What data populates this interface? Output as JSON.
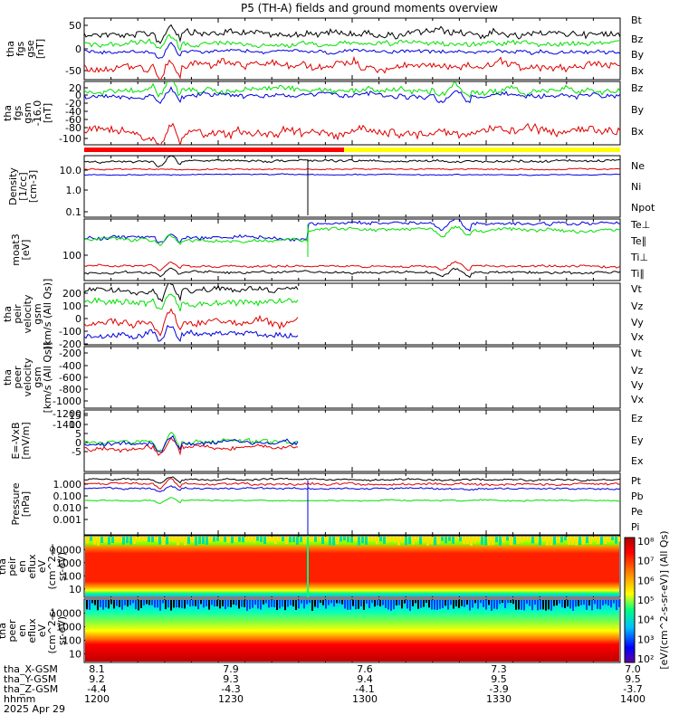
{
  "title": "P5 (TH-A) fields and ground moments overview",
  "colors": {
    "black": "#000000",
    "red": "#e00000",
    "green": "#00e000",
    "blue": "#0000e0",
    "yellow": "#ffff00",
    "bar_red": "#ff0000"
  },
  "panels": [
    {
      "ylabel": [
        "tha",
        "fgs",
        "gse",
        "[nT]"
      ],
      "yticks": [
        "50",
        "0",
        "-50"
      ],
      "legend": [
        {
          "text": "Bt",
          "color": "black"
        },
        {
          "text": "Bz",
          "color": "red"
        },
        {
          "text": "By",
          "color": "green"
        },
        {
          "text": "Bx",
          "color": "blue"
        }
      ]
    },
    {
      "ylabel": [
        "tha",
        "fgs",
        "gsm",
        "-16.0",
        "[nT]"
      ],
      "yticks": [
        "20",
        "0",
        "-20",
        "-40",
        "-60",
        "-80",
        "-100"
      ],
      "legend": [
        {
          "text": "Bz",
          "color": "red"
        },
        {
          "text": "By",
          "color": "green"
        },
        {
          "text": "Bx",
          "color": "blue"
        }
      ]
    },
    {
      "ylabel": [
        "Density",
        "[1/cc]",
        "[cm-3]"
      ],
      "yticks": [
        "10.0",
        "1.0",
        "0.1"
      ],
      "legend": [
        {
          "text": "Ne",
          "color": "red"
        },
        {
          "text": "Ni",
          "color": "black"
        },
        {
          "text": "Npot",
          "color": "blue"
        }
      ]
    },
    {
      "ylabel": [
        "moat3",
        "[eV]"
      ],
      "yticks": [
        "100"
      ],
      "legend": [
        {
          "text": "Te⊥",
          "color": "red"
        },
        {
          "text": "Te∥",
          "color": "black"
        },
        {
          "text": "Ti⊥",
          "color": "green"
        },
        {
          "text": "Ti∥",
          "color": "green"
        }
      ]
    },
    {
      "ylabel": [
        "tha",
        "peir",
        "velocity",
        "gsm",
        "[km/s (All Qs)]"
      ],
      "yticks": [
        "200",
        "100",
        "0",
        "-100",
        "-200"
      ],
      "legend": [
        {
          "text": "Vt",
          "color": "black"
        },
        {
          "text": "Vz",
          "color": "red"
        },
        {
          "text": "Vy",
          "color": "green"
        },
        {
          "text": "Vx",
          "color": "blue"
        }
      ]
    },
    {
      "ylabel": [
        "tha",
        "peer",
        "velocity",
        "gsm",
        "[km/s (All Qs)]"
      ],
      "yticks": [
        "-200",
        "-400",
        "-600",
        "-800",
        "-1000",
        "-1200",
        "-1400"
      ],
      "legend": [
        {
          "text": "Vt",
          "color": "black"
        },
        {
          "text": "Vz",
          "color": "red"
        },
        {
          "text": "Vy",
          "color": "green"
        },
        {
          "text": "Vx",
          "color": "blue"
        }
      ]
    },
    {
      "ylabel": [
        "E=-VxB",
        "[mV/m]"
      ],
      "yticks": [
        "15",
        "10",
        "5",
        "0",
        "-5"
      ],
      "legend": [
        {
          "text": "Ez",
          "color": "red"
        },
        {
          "text": "Ey",
          "color": "green"
        },
        {
          "text": "Ex",
          "color": "blue"
        }
      ]
    },
    {
      "ylabel": [
        "Pressure",
        "[nPa]"
      ],
      "yticks": [
        "1.000",
        "0.100",
        "0.010",
        "0.001"
      ],
      "legend": [
        {
          "text": "Pt",
          "color": "black"
        },
        {
          "text": "Pb",
          "color": "red"
        },
        {
          "text": "Pe",
          "color": "green"
        },
        {
          "text": "Pi",
          "color": "blue"
        }
      ]
    },
    {
      "ylabel": [
        "tha",
        "peir",
        "en",
        "eflux",
        "eV",
        "(cm^2-s-",
        "sr-eV)"
      ],
      "yticks": [
        "10000",
        "1000",
        "100",
        "10"
      ]
    },
    {
      "ylabel": [
        "tha",
        "peer",
        "en",
        "eflux",
        "eV",
        "(cm^2-s-",
        "sr-eV)"
      ],
      "yticks": [
        "10000",
        "1000",
        "100",
        "10"
      ]
    }
  ],
  "colorbar": {
    "ticks": [
      "10⁸",
      "10⁷",
      "10⁶",
      "10⁵",
      "10⁴",
      "10³",
      "10²"
    ],
    "label": "[eV/(cm^2-s-sr-eV)] (All Qs)"
  },
  "xaxis": {
    "row_labels": [
      "tha_X-GSM",
      "tha_Y-GSM",
      "tha_Z-GSM",
      "hhmm",
      "2025 Apr 29"
    ],
    "columns": [
      {
        "values": [
          "8.1",
          "9.2",
          "-4.4",
          "1200"
        ]
      },
      {
        "values": [
          "7.9",
          "9.3",
          "-4.3",
          "1230"
        ]
      },
      {
        "values": [
          "7.6",
          "9.4",
          "-4.1",
          "1300"
        ]
      },
      {
        "values": [
          "7.3",
          "9.5",
          "-3.9",
          "1330"
        ]
      },
      {
        "values": [
          "7.0",
          "9.5",
          "-3.7",
          "1400"
        ]
      }
    ]
  },
  "chart_data": [
    {
      "type": "line",
      "title": "tha fgs gse",
      "series": [
        "Bt",
        "Bz",
        "By",
        "Bx"
      ],
      "ylim": [
        -75,
        75
      ],
      "typical": {
        "Bt": 55,
        "Bz": -45,
        "By": 10,
        "Bx": -5
      }
    },
    {
      "type": "line",
      "title": "tha fgs gsm",
      "series": [
        "Bz",
        "By",
        "Bx"
      ],
      "ylim": [
        -110,
        30
      ],
      "typical": {
        "Bz": -95,
        "By": 15,
        "Bx": 0
      }
    },
    {
      "type": "line",
      "title": "Density",
      "series": [
        "Ne",
        "Ni",
        "Npot"
      ],
      "log": true,
      "ylim": [
        0.04,
        30
      ],
      "typical": {
        "Ne": 10,
        "Ni": 20,
        "Npot": 6
      }
    },
    {
      "type": "line",
      "title": "moat3",
      "series": [
        "Te⊥",
        "Te∥",
        "Ti⊥",
        "Ti∥"
      ],
      "log": true,
      "typical": {
        "Te⊥": 60,
        "Te∥": 45,
        "Ti⊥": 500,
        "Ti∥": 350
      }
    },
    {
      "type": "line",
      "title": "peir velocity",
      "series": [
        "Vt",
        "Vz",
        "Vy",
        "Vx"
      ],
      "ylim": [
        -250,
        280
      ],
      "x_end": "1248",
      "typical": {
        "Vt": 180,
        "Vz": -60,
        "Vy": 120,
        "Vx": -150
      }
    },
    {
      "type": "line",
      "title": "peer velocity",
      "series": [
        "Vt",
        "Vz",
        "Vy",
        "Vx"
      ],
      "ylim": [
        -1500,
        -100
      ]
    },
    {
      "type": "line",
      "title": "E=-VxB",
      "series": [
        "Ez",
        "Ey",
        "Ex"
      ],
      "ylim": [
        -6,
        16
      ],
      "x_end": "1248",
      "typical": {
        "Ez": 3,
        "Ey": 6,
        "Ex": 4
      }
    },
    {
      "type": "line",
      "title": "Pressure",
      "series": [
        "Pt",
        "Pb",
        "Pe",
        "Pi"
      ],
      "log": true,
      "typical": {
        "Pt": 1.4,
        "Pb": 1.0,
        "Pe": 0.05,
        "Pi": 0.4
      }
    },
    {
      "type": "heatmap",
      "title": "tha peir en eflux",
      "y_log": true,
      "ylim": [
        7,
        20000
      ]
    },
    {
      "type": "heatmap",
      "title": "tha peer en eflux",
      "y_log": true,
      "ylim": [
        7,
        20000
      ]
    }
  ]
}
